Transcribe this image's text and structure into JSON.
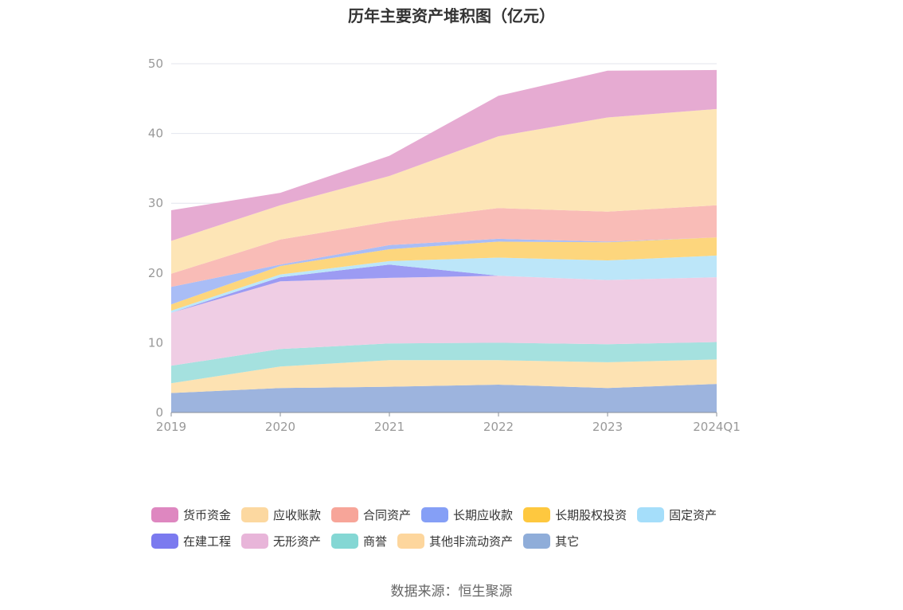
{
  "chart_data": {
    "type": "area",
    "stacked": true,
    "title": "历年主要资产堆积图（亿元）",
    "x": [
      "2019",
      "2020",
      "2021",
      "2022",
      "2023",
      "2024Q1"
    ],
    "ylim": [
      0,
      50
    ],
    "yticks": [
      0,
      10,
      20,
      30,
      40,
      50
    ],
    "grid": true,
    "legend_position": "bottom",
    "series": [
      {
        "name": "其它",
        "color": "#9db4de",
        "values": [
          2.8,
          3.5,
          3.7,
          4.0,
          3.5,
          4.1
        ]
      },
      {
        "name": "其他非流动资产",
        "color": "#fde2b2",
        "values": [
          1.4,
          3.1,
          3.8,
          3.5,
          3.7,
          3.5
        ]
      },
      {
        "name": "商誉",
        "color": "#a5e1df",
        "values": [
          2.5,
          2.5,
          2.4,
          2.5,
          2.6,
          2.5
        ]
      },
      {
        "name": "无形资产",
        "color": "#efcde4",
        "values": [
          7.6,
          9.7,
          9.4,
          9.6,
          9.2,
          9.3
        ]
      },
      {
        "name": "在建工程",
        "color": "#9c9bf3",
        "values": [
          0.0,
          0.6,
          1.9,
          0.0,
          0.0,
          0.0
        ]
      },
      {
        "name": "固定资产",
        "color": "#bce6f9",
        "values": [
          0.3,
          0.4,
          0.5,
          2.6,
          2.8,
          3.1
        ]
      },
      {
        "name": "长期股权投资",
        "color": "#fdd67d",
        "values": [
          0.9,
          1.2,
          1.7,
          2.3,
          2.6,
          2.6
        ]
      },
      {
        "name": "长期应收款",
        "color": "#a9bdf6",
        "values": [
          2.5,
          0.2,
          0.6,
          0.4,
          0.1,
          0.0
        ]
      },
      {
        "name": "合同资产",
        "color": "#f9bcb7",
        "values": [
          1.9,
          3.6,
          3.4,
          4.4,
          4.3,
          4.6
        ]
      },
      {
        "name": "应收账款",
        "color": "#fde5b6",
        "values": [
          4.7,
          4.9,
          6.5,
          10.3,
          13.5,
          13.8
        ]
      },
      {
        "name": "货币资金",
        "color": "#e6abd2",
        "values": [
          4.4,
          1.8,
          2.9,
          5.8,
          6.7,
          5.6
        ]
      }
    ]
  },
  "legend": {
    "rows": [
      [
        {
          "label": "货币资金",
          "color": "#de87c0"
        },
        {
          "label": "应收账款",
          "color": "#fcd8a0"
        },
        {
          "label": "合同资产",
          "color": "#f7a599"
        },
        {
          "label": "长期应收款",
          "color": "#859ff6"
        },
        {
          "label": "长期股权投资",
          "color": "#fec83f"
        },
        {
          "label": "固定资产",
          "color": "#a5defa"
        }
      ],
      [
        {
          "label": "在建工程",
          "color": "#7b7aef"
        },
        {
          "label": "无形资产",
          "color": "#e8b5d9"
        },
        {
          "label": "商誉",
          "color": "#84d7d4"
        },
        {
          "label": "其他非流动资产",
          "color": "#fdd69d"
        },
        {
          "label": "其它",
          "color": "#8fadd9"
        }
      ]
    ]
  },
  "source": "数据来源：恒生聚源"
}
